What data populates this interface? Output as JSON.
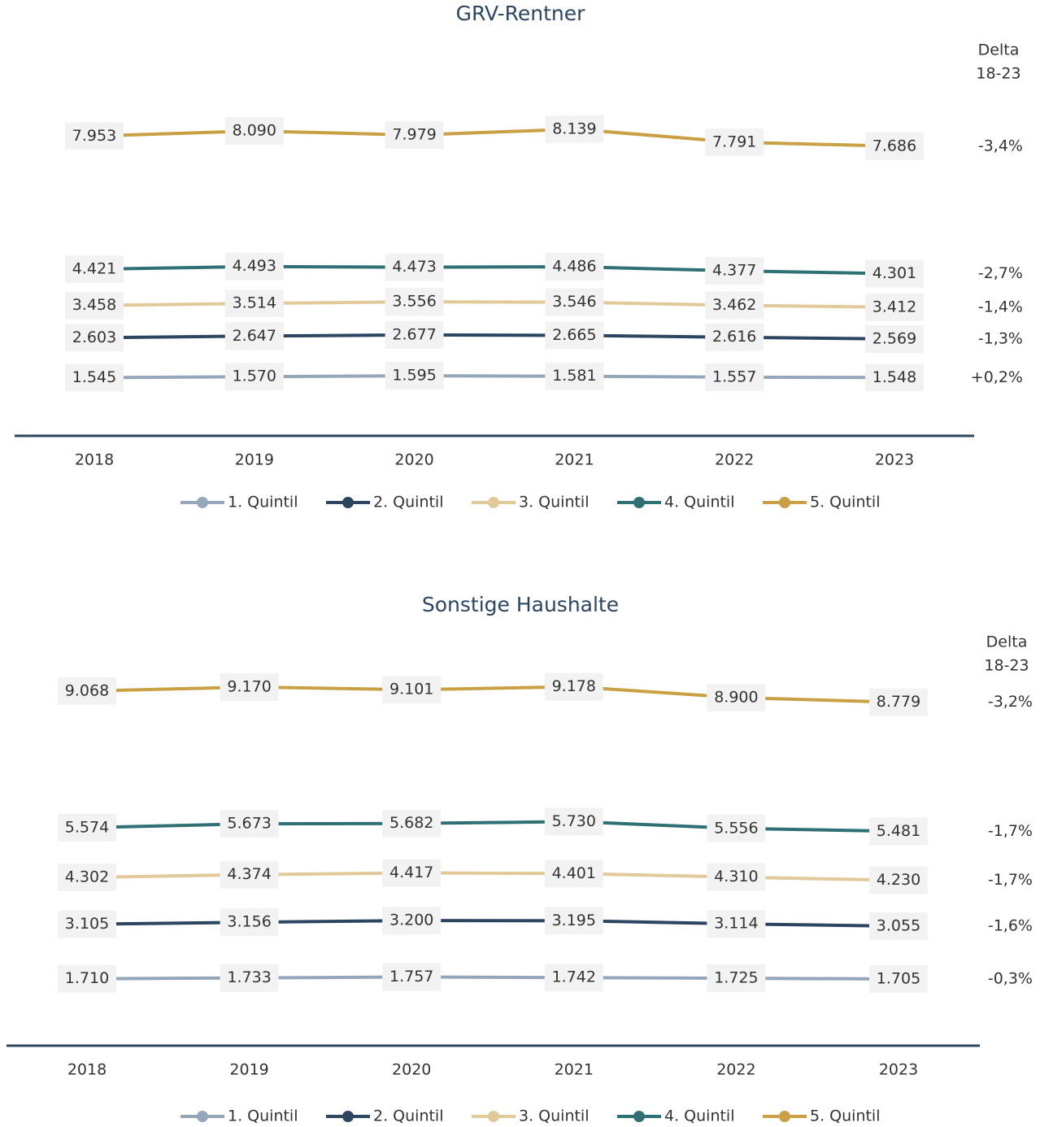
{
  "chart_data": [
    {
      "type": "line",
      "title": "GRV-Rentner",
      "delta_header": [
        "Delta",
        "18-23"
      ],
      "categories": [
        "2018",
        "2019",
        "2020",
        "2021",
        "2022",
        "2023"
      ],
      "ylim": [
        0,
        10000
      ],
      "series": [
        {
          "name": "1. Quintil",
          "color": "#94a7ba",
          "values": [
            1545,
            1570,
            1595,
            1581,
            1557,
            1548
          ],
          "value_labels": [
            "1.545",
            "1.570",
            "1.595",
            "1.581",
            "1.557",
            "1.548"
          ],
          "delta": "+0,2%"
        },
        {
          "name": "2. Quintil",
          "color": "#2c4561",
          "values": [
            2603,
            2647,
            2677,
            2665,
            2616,
            2569
          ],
          "value_labels": [
            "2.603",
            "2.647",
            "2.677",
            "2.665",
            "2.616",
            "2.569"
          ],
          "delta": "-1,3%"
        },
        {
          "name": "3. Quintil",
          "color": "#e2c99a",
          "values": [
            3458,
            3514,
            3556,
            3546,
            3462,
            3412
          ],
          "value_labels": [
            "3.458",
            "3.514",
            "3.556",
            "3.546",
            "3.462",
            "3.412"
          ],
          "delta": "-1,4%"
        },
        {
          "name": "4. Quintil",
          "color": "#2e7073",
          "values": [
            4421,
            4493,
            4473,
            4486,
            4377,
            4301
          ],
          "value_labels": [
            "4.421",
            "4.493",
            "4.473",
            "4.486",
            "4.377",
            "4.301"
          ],
          "delta": "-2,7%"
        },
        {
          "name": "5. Quintil",
          "color": "#c9a043",
          "values": [
            7953,
            8090,
            7979,
            8139,
            7791,
            7686
          ],
          "value_labels": [
            "7.953",
            "8.090",
            "7.979",
            "8.139",
            "7.791",
            "7.686"
          ],
          "delta": "-3,4%"
        }
      ]
    },
    {
      "type": "line",
      "title": "Sonstige Haushalte",
      "delta_header": [
        "Delta",
        "18-23"
      ],
      "categories": [
        "2018",
        "2019",
        "2020",
        "2021",
        "2022",
        "2023"
      ],
      "ylim": [
        0,
        10000
      ],
      "series": [
        {
          "name": "1. Quintil",
          "color": "#94a7ba",
          "values": [
            1710,
            1733,
            1757,
            1742,
            1725,
            1705
          ],
          "value_labels": [
            "1.710",
            "1.733",
            "1.757",
            "1.742",
            "1.725",
            "1.705"
          ],
          "delta": "-0,3%"
        },
        {
          "name": "2. Quintil",
          "color": "#2c4561",
          "values": [
            3105,
            3156,
            3200,
            3195,
            3114,
            3055
          ],
          "value_labels": [
            "3.105",
            "3.156",
            "3.200",
            "3.195",
            "3.114",
            "3.055"
          ],
          "delta": "-1,6%"
        },
        {
          "name": "3. Quintil",
          "color": "#e2c99a",
          "values": [
            4302,
            4374,
            4417,
            4401,
            4310,
            4230
          ],
          "value_labels": [
            "4.302",
            "4.374",
            "4.417",
            "4.401",
            "4.310",
            "4.230"
          ],
          "delta": "-1,7%"
        },
        {
          "name": "4. Quintil",
          "color": "#2e7073",
          "values": [
            5574,
            5673,
            5682,
            5730,
            5556,
            5481
          ],
          "value_labels": [
            "5.574",
            "5.673",
            "5.682",
            "5.730",
            "5.556",
            "5.481"
          ],
          "delta": "-1,7%"
        },
        {
          "name": "5. Quintil",
          "color": "#c9a043",
          "values": [
            9068,
            9170,
            9101,
            9178,
            8900,
            8779
          ],
          "value_labels": [
            "9.068",
            "9.170",
            "9.101",
            "9.178",
            "8.900",
            "8.779"
          ],
          "delta": "-3,2%"
        }
      ]
    }
  ]
}
